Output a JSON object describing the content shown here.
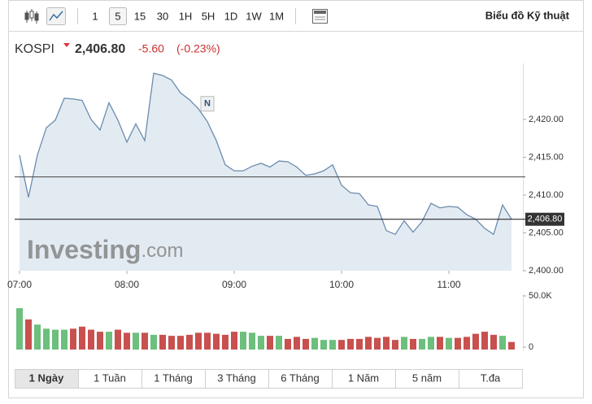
{
  "toolbar": {
    "intervals": [
      "1",
      "5",
      "15",
      "30",
      "1H",
      "5H",
      "1D",
      "1W",
      "1M"
    ],
    "selected_interval": "5",
    "link": "Biểu đồ Kỹ thuật"
  },
  "quote": {
    "name": "KOSPI",
    "price": "2,406.80",
    "change": "-5.60",
    "change_pct": "(-0.23%)"
  },
  "tabs": {
    "items": [
      "1 Ngày",
      "1 Tuần",
      "1 Tháng",
      "3 Tháng",
      "6 Tháng",
      "1 Năm",
      "5 năm",
      "T.đa"
    ],
    "selected": "1 Ngày"
  },
  "chart_data": {
    "type": "line",
    "x": [
      "07:00",
      "07:05",
      "07:10",
      "07:15",
      "07:20",
      "07:25",
      "07:30",
      "07:35",
      "07:40",
      "07:45",
      "07:50",
      "07:55",
      "08:00",
      "08:05",
      "08:10",
      "08:15",
      "08:20",
      "08:25",
      "08:30",
      "08:35",
      "08:40",
      "08:45",
      "08:50",
      "08:55",
      "09:00",
      "09:05",
      "09:10",
      "09:15",
      "09:20",
      "09:25",
      "09:30",
      "09:35",
      "09:40",
      "09:45",
      "09:50",
      "09:55",
      "10:00",
      "10:05",
      "10:10",
      "10:15",
      "10:20",
      "10:25",
      "10:30",
      "10:35",
      "10:40",
      "10:45",
      "10:50",
      "10:55",
      "11:00",
      "11:05",
      "11:10",
      "11:15",
      "11:20",
      "11:25",
      "11:30",
      "11:35"
    ],
    "xlim": [
      "07:00",
      "11:40"
    ],
    "xticks": [
      "07:00",
      "08:00",
      "09:00",
      "10:00",
      "11:00"
    ],
    "series": [
      {
        "name": "KOSPI",
        "color": "#6a8caf",
        "fill": "#e3ebf2",
        "values": [
          2415.3,
          2409.7,
          2415.3,
          2418.9,
          2419.9,
          2422.8,
          2422.7,
          2422.5,
          2420.0,
          2418.6,
          2422.2,
          2419.9,
          2417.0,
          2419.4,
          2417.2,
          2426.1,
          2425.8,
          2425.2,
          2423.5,
          2422.6,
          2421.4,
          2419.7,
          2417.2,
          2414.0,
          2413.2,
          2413.2,
          2413.8,
          2414.2,
          2413.7,
          2414.5,
          2414.4,
          2413.7,
          2412.6,
          2412.8,
          2413.2,
          2414.0,
          2411.3,
          2410.3,
          2410.2,
          2408.7,
          2408.5,
          2405.3,
          2404.8,
          2406.6,
          2405.1,
          2406.5,
          2408.9,
          2408.3,
          2408.5,
          2408.4,
          2407.4,
          2406.8,
          2405.6,
          2404.8,
          2408.7,
          2406.8
        ]
      }
    ],
    "ylim": [
      2400,
      2427.4
    ],
    "yticks": [
      {
        "value": 2400,
        "label": "2,400.00"
      },
      {
        "value": 2405,
        "label": "2,405.00"
      },
      {
        "value": 2410,
        "label": "2,410.00"
      },
      {
        "value": 2415,
        "label": "2,415.00"
      },
      {
        "value": 2420,
        "label": "2,420.00"
      }
    ],
    "previous_close": 2412.4,
    "last_price": {
      "value": 2406.8,
      "label": "2,406.80"
    },
    "annotations": [
      {
        "x": "08:45",
        "label": "N"
      }
    ],
    "watermark": {
      "brand": "Investing",
      "domain": ".com"
    },
    "volume": {
      "values": [
        38,
        27,
        22,
        18,
        17,
        17,
        18,
        20,
        17,
        15,
        15,
        17,
        14,
        14,
        14,
        12,
        12,
        11,
        11,
        12,
        14,
        14,
        13,
        12,
        15,
        15,
        14,
        11,
        11,
        11,
        8,
        10,
        8,
        9,
        7,
        7,
        7,
        8,
        8,
        10,
        9,
        10,
        7,
        10,
        8,
        8,
        10,
        10,
        9,
        9,
        10,
        13,
        15,
        12,
        11,
        5
      ],
      "ylim": [
        0,
        50
      ],
      "yticks": [
        0,
        {
          "value": 50,
          "label": "50.0K"
        }
      ],
      "up_color": "#6cbf7c",
      "down_color": "#c8504e"
    }
  }
}
